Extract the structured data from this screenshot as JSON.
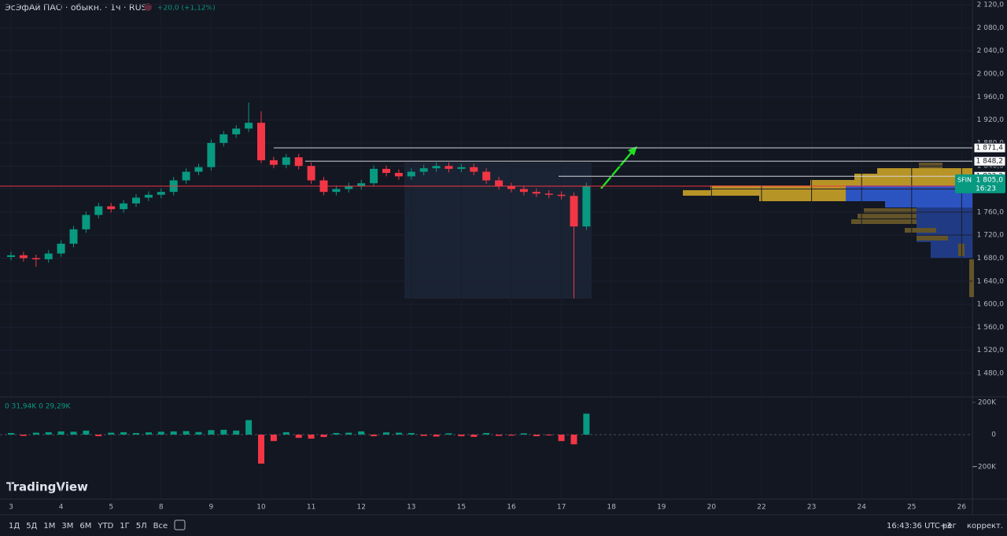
{
  "header": {
    "symbol": "ЭсЭфАй ПАО · обыкн. · 1ч · RUS",
    "change": "+20,0 (+1,12%)"
  },
  "chart_data": {
    "type": "candlestick",
    "x": [
      0,
      0.25,
      0.5,
      0.75,
      1,
      1.25,
      1.5,
      1.75,
      2,
      2.25,
      2.5,
      2.75,
      3,
      3.25,
      3.5,
      3.75,
      4,
      4.25,
      4.5,
      4.75,
      5,
      5.25,
      5.5,
      5.75,
      6,
      6.25,
      6.5,
      6.75,
      7,
      7.25,
      7.5,
      7.75,
      8,
      8.25,
      8.5,
      8.75,
      9,
      9.25,
      9.5,
      9.75,
      10,
      10.25,
      10.5,
      10.75,
      11,
      11.25,
      11.5
    ],
    "open": [
      1682,
      1685,
      1680,
      1678,
      1688,
      1705,
      1730,
      1755,
      1770,
      1765,
      1775,
      1785,
      1790,
      1795,
      1815,
      1830,
      1838,
      1880,
      1895,
      1905,
      1915,
      1850,
      1842,
      1855,
      1840,
      1815,
      1795,
      1800,
      1805,
      1810,
      1835,
      1828,
      1822,
      1830,
      1836,
      1840,
      1835,
      1838,
      1830,
      1815,
      1805,
      1800,
      1795,
      1792,
      1790,
      1788,
      1735
    ],
    "high": [
      1691,
      1691,
      1686,
      1694,
      1711,
      1736,
      1761,
      1776,
      1776,
      1781,
      1791,
      1796,
      1801,
      1821,
      1836,
      1844,
      1886,
      1901,
      1911,
      1950,
      1935,
      1856,
      1861,
      1861,
      1846,
      1821,
      1806,
      1811,
      1816,
      1841,
      1841,
      1834,
      1836,
      1842,
      1846,
      1846,
      1844,
      1844,
      1836,
      1821,
      1811,
      1806,
      1801,
      1798,
      1796,
      1794,
      1811
    ],
    "low": [
      1676,
      1674,
      1665,
      1672,
      1682,
      1699,
      1724,
      1749,
      1759,
      1759,
      1769,
      1779,
      1784,
      1789,
      1809,
      1824,
      1832,
      1874,
      1889,
      1899,
      1845,
      1836,
      1836,
      1834,
      1809,
      1789,
      1789,
      1794,
      1799,
      1804,
      1822,
      1816,
      1816,
      1824,
      1830,
      1829,
      1829,
      1824,
      1809,
      1799,
      1794,
      1789,
      1786,
      1784,
      1782,
      1610,
      1729
    ],
    "close": [
      1685,
      1680,
      1678,
      1688,
      1705,
      1730,
      1755,
      1770,
      1765,
      1775,
      1785,
      1790,
      1795,
      1815,
      1830,
      1838,
      1880,
      1895,
      1905,
      1915,
      1850,
      1842,
      1855,
      1840,
      1815,
      1795,
      1800,
      1805,
      1810,
      1835,
      1828,
      1822,
      1830,
      1836,
      1840,
      1835,
      1838,
      1830,
      1815,
      1805,
      1800,
      1795,
      1792,
      1790,
      1788,
      1735,
      1805
    ],
    "volume": [
      10,
      -8,
      12,
      15,
      20,
      18,
      25,
      -10,
      12,
      15,
      10,
      14,
      18,
      20,
      22,
      16,
      28,
      30,
      25,
      90,
      -180,
      -40,
      15,
      -20,
      -25,
      -15,
      10,
      12,
      20,
      -10,
      14,
      12,
      10,
      -8,
      -12,
      8,
      -10,
      -14,
      10,
      -8,
      -6,
      8,
      -10,
      -5,
      -40,
      -60,
      130
    ],
    "ylim": [
      1480,
      2120
    ],
    "yticks": [
      {
        "value": 2120,
        "label": "2 120,0"
      },
      {
        "value": 2080,
        "label": "2 080,0"
      },
      {
        "value": 2040,
        "label": "2 040,0"
      },
      {
        "value": 2000,
        "label": "2 000,0"
      },
      {
        "value": 1960,
        "label": "1 960,0"
      },
      {
        "value": 1920,
        "label": "1 920,0"
      },
      {
        "value": 1880,
        "label": "1 880,0"
      },
      {
        "value": 1840,
        "label": "1 840,0"
      },
      {
        "value": 1800,
        "label": "1 800,0"
      },
      {
        "value": 1760,
        "label": "1 760,0"
      },
      {
        "value": 1720,
        "label": "1 720,0"
      },
      {
        "value": 1680,
        "label": "1 680,0"
      },
      {
        "value": 1640,
        "label": "1 640,0"
      },
      {
        "value": 1600,
        "label": "1 600,0"
      },
      {
        "value": 1560,
        "label": "1 560,0"
      },
      {
        "value": 1520,
        "label": "1 520,0"
      },
      {
        "value": 1480,
        "label": "1 480,0"
      }
    ],
    "xticks": [
      {
        "value": 0,
        "label": "3"
      },
      {
        "value": 1,
        "label": "4"
      },
      {
        "value": 2,
        "label": "5"
      },
      {
        "value": 3,
        "label": "8"
      },
      {
        "value": 4,
        "label": "9"
      },
      {
        "value": 5,
        "label": "10"
      },
      {
        "value": 6,
        "label": "11"
      },
      {
        "value": 7,
        "label": "12"
      },
      {
        "value": 8,
        "label": "13"
      },
      {
        "value": 9,
        "label": "15"
      },
      {
        "value": 10,
        "label": "16"
      },
      {
        "value": 11,
        "label": "17"
      },
      {
        "value": 12,
        "label": "18"
      },
      {
        "value": 13,
        "label": "19"
      },
      {
        "value": 14,
        "label": "20"
      },
      {
        "value": 15,
        "label": "22"
      },
      {
        "value": 16,
        "label": "23"
      },
      {
        "value": 17,
        "label": "24"
      },
      {
        "value": 18,
        "label": "25"
      },
      {
        "value": 19,
        "label": "26"
      }
    ],
    "levels": [
      {
        "value": 1871.4,
        "label": "1 871,4"
      },
      {
        "value": 1848.2,
        "label": "1 848,2"
      },
      {
        "value": 1822.2,
        "label": "1 822,2"
      }
    ],
    "last": {
      "ticker": "SFIN",
      "value": 1805.0,
      "label": "1 805,0",
      "countdown": "16:23"
    },
    "volume_legend": "0  31,94K  0  29,29K",
    "vticks": [
      {
        "value": 200,
        "label": "200K"
      },
      0,
      {
        "value": -200,
        "label": "−200K"
      }
    ],
    "colors": {
      "up": "#089981",
      "down": "#f23645"
    }
  },
  "toolbar": {
    "ranges": [
      "1Д",
      "5Д",
      "1М",
      "3М",
      "6М",
      "YTD",
      "1Г",
      "5Л",
      "Все"
    ],
    "clock": "16:43:36 UTC+3",
    "session": "рег",
    "adjust": "коррект."
  },
  "brand": "TradingView"
}
